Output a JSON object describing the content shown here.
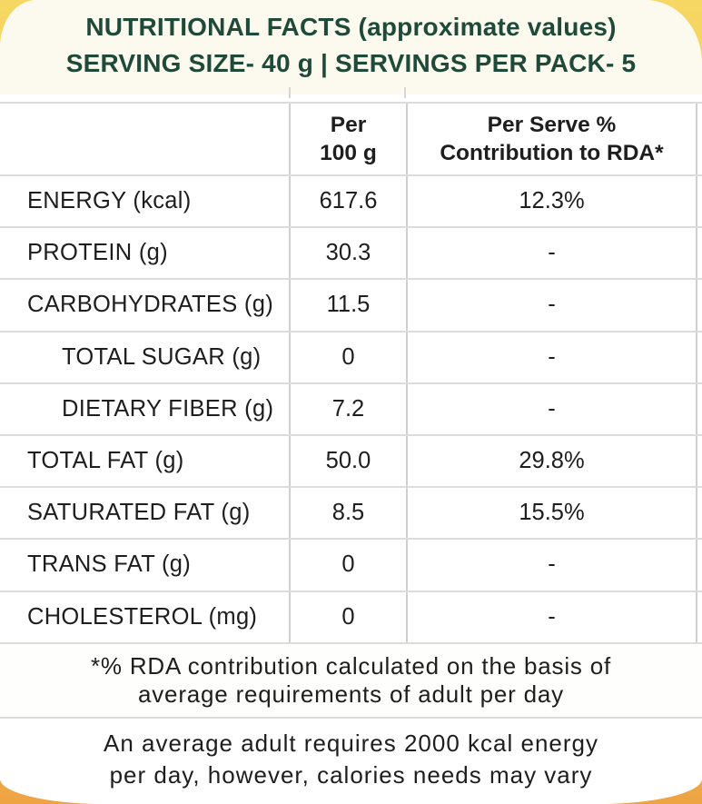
{
  "colors": {
    "accent_green": "#1f4a3a",
    "header_cream": "#fcf9ee",
    "corner_yellow_top": "#f6d763",
    "corner_orange_bottom": "#eea443",
    "border_gray": "#dcdcda",
    "text_black": "#1e1e1e"
  },
  "header": {
    "line1": "NUTRITIONAL FACTS (approximate values)",
    "line2": "SERVING SIZE- 40 g | SERVINGS PER PACK- 5"
  },
  "table": {
    "header": {
      "col_label": "",
      "per_100g": [
        "Per",
        "100 g"
      ],
      "per_serve": [
        "Per Serve %",
        "Contribution to RDA*"
      ]
    },
    "rows": [
      {
        "label": "ENERGY (kcal)",
        "per100": "617.6",
        "rda": "12.3%"
      },
      {
        "label": "PROTEIN (g)",
        "per100": "30.3",
        "rda": "-"
      },
      {
        "label": "CARBOHYDRATES (g)",
        "per100": "11.5",
        "rda": "-"
      },
      {
        "label": "TOTAL SUGAR (g)",
        "per100": "0",
        "rda": "-",
        "indent": true
      },
      {
        "label": "DIETARY FIBER (g)",
        "per100": "7.2",
        "rda": "-",
        "indent": true
      },
      {
        "label": "TOTAL FAT (g)",
        "per100": "50.0",
        "rda": "29.8%"
      },
      {
        "label": "SATURATED FAT (g)",
        "per100": "8.5",
        "rda": "15.5%"
      },
      {
        "label": "TRANS FAT (g)",
        "per100": "0",
        "rda": "-"
      },
      {
        "label": "CHOLESTEROL (mg)",
        "per100": "0",
        "rda": "-"
      }
    ]
  },
  "footnotes": {
    "rda_note": [
      "*% RDA contribution calculated on the basis of",
      "average requirements of adult per day"
    ],
    "calorie_note": [
      "An average adult requires 2000 kcal energy",
      "per day, however, calories needs may vary"
    ]
  }
}
